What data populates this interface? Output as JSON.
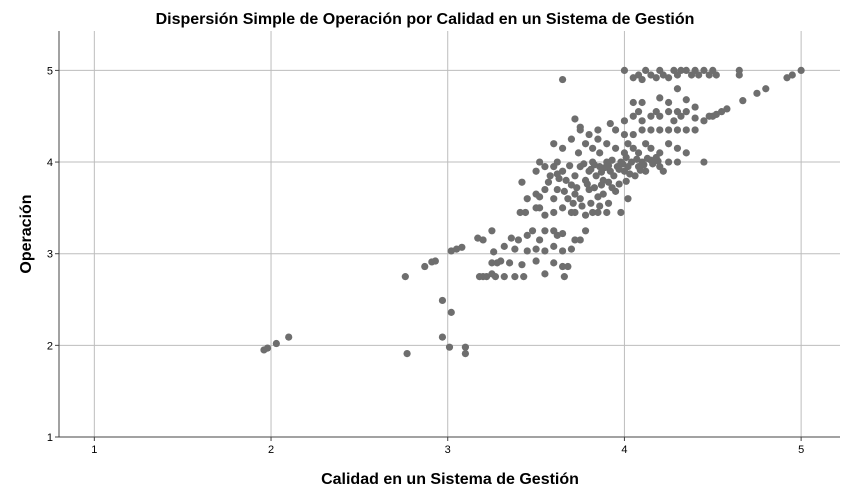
{
  "chart_data": {
    "type": "scatter",
    "title": "Dispersión Simple de Operación por Calidad en un Sistema de Gestión",
    "xlabel": "Calidad en un Sistema de Gestión",
    "ylabel": "Operación",
    "xlim": [
      0.8,
      5.22
    ],
    "ylim": [
      1,
      5.43
    ],
    "xticks": [
      "1",
      "2",
      "3",
      "4",
      "5"
    ],
    "yticks": [
      "1",
      "2",
      "3",
      "4",
      "5"
    ],
    "grid": true,
    "legend": "none",
    "marker_color": "#6e6e6e",
    "grid_color": "#bdbdbd",
    "points": [
      [
        1.96,
        1.95
      ],
      [
        1.98,
        1.97
      ],
      [
        2.03,
        2.02
      ],
      [
        2.1,
        2.09
      ],
      [
        2.76,
        2.75
      ],
      [
        2.77,
        1.91
      ],
      [
        2.87,
        2.86
      ],
      [
        2.91,
        2.91
      ],
      [
        2.93,
        2.92
      ],
      [
        2.97,
        2.49
      ],
      [
        2.97,
        2.09
      ],
      [
        3.01,
        1.98
      ],
      [
        3.02,
        2.36
      ],
      [
        3.1,
        1.91
      ],
      [
        3.1,
        1.98
      ],
      [
        3.02,
        3.03
      ],
      [
        3.05,
        3.05
      ],
      [
        3.08,
        3.07
      ],
      [
        3.17,
        3.17
      ],
      [
        3.2,
        3.15
      ],
      [
        3.18,
        2.75
      ],
      [
        3.2,
        2.75
      ],
      [
        3.22,
        2.75
      ],
      [
        3.25,
        2.78
      ],
      [
        3.27,
        2.75
      ],
      [
        3.32,
        2.75
      ],
      [
        3.38,
        2.75
      ],
      [
        3.43,
        2.75
      ],
      [
        3.55,
        2.78
      ],
      [
        3.66,
        2.75
      ],
      [
        3.25,
        2.9
      ],
      [
        3.28,
        2.9
      ],
      [
        3.3,
        2.92
      ],
      [
        3.35,
        2.9
      ],
      [
        3.42,
        2.88
      ],
      [
        3.5,
        2.92
      ],
      [
        3.6,
        2.9
      ],
      [
        3.65,
        2.86
      ],
      [
        3.68,
        2.86
      ],
      [
        3.26,
        3.02
      ],
      [
        3.32,
        3.08
      ],
      [
        3.38,
        3.05
      ],
      [
        3.45,
        3.03
      ],
      [
        3.5,
        3.05
      ],
      [
        3.55,
        3.03
      ],
      [
        3.6,
        3.08
      ],
      [
        3.65,
        3.03
      ],
      [
        3.7,
        3.05
      ],
      [
        3.25,
        3.25
      ],
      [
        3.36,
        3.17
      ],
      [
        3.4,
        3.15
      ],
      [
        3.45,
        3.2
      ],
      [
        3.48,
        3.25
      ],
      [
        3.52,
        3.15
      ],
      [
        3.55,
        3.25
      ],
      [
        3.6,
        3.25
      ],
      [
        3.62,
        3.2
      ],
      [
        3.65,
        3.22
      ],
      [
        3.72,
        3.15
      ],
      [
        3.75,
        3.15
      ],
      [
        3.78,
        3.25
      ],
      [
        3.41,
        3.45
      ],
      [
        3.44,
        3.45
      ],
      [
        3.5,
        3.5
      ],
      [
        3.52,
        3.5
      ],
      [
        3.55,
        3.42
      ],
      [
        3.6,
        3.45
      ],
      [
        3.65,
        3.5
      ],
      [
        3.7,
        3.45
      ],
      [
        3.72,
        3.45
      ],
      [
        3.78,
        3.42
      ],
      [
        3.82,
        3.45
      ],
      [
        3.85,
        3.45
      ],
      [
        3.9,
        3.45
      ],
      [
        3.98,
        3.45
      ],
      [
        3.45,
        3.6
      ],
      [
        3.5,
        3.65
      ],
      [
        3.55,
        3.7
      ],
      [
        3.6,
        3.6
      ],
      [
        3.62,
        3.7
      ],
      [
        3.68,
        3.6
      ],
      [
        3.72,
        3.65
      ],
      [
        3.75,
        3.6
      ],
      [
        3.8,
        3.7
      ],
      [
        3.85,
        3.62
      ],
      [
        3.88,
        3.65
      ],
      [
        3.95,
        3.68
      ],
      [
        4.02,
        3.6
      ],
      [
        3.42,
        3.78
      ],
      [
        3.5,
        3.9
      ],
      [
        3.52,
        4.0
      ],
      [
        3.55,
        3.95
      ],
      [
        3.6,
        3.95
      ],
      [
        3.62,
        4.0
      ],
      [
        3.58,
        3.85
      ],
      [
        3.65,
        3.9
      ],
      [
        3.67,
        3.8
      ],
      [
        3.7,
        3.75
      ],
      [
        3.72,
        3.85
      ],
      [
        3.75,
        3.95
      ],
      [
        3.78,
        3.8
      ],
      [
        3.8,
        3.9
      ],
      [
        3.82,
        4.0
      ],
      [
        3.84,
        3.85
      ],
      [
        3.86,
        3.95
      ],
      [
        3.88,
        3.8
      ],
      [
        3.9,
        4.0
      ],
      [
        3.92,
        3.9
      ],
      [
        3.94,
        3.85
      ],
      [
        3.96,
        3.95
      ],
      [
        3.98,
        4.0
      ],
      [
        4.0,
        3.9
      ],
      [
        4.02,
        3.95
      ],
      [
        4.04,
        4.0
      ],
      [
        4.06,
        3.85
      ],
      [
        4.08,
        3.95
      ],
      [
        4.1,
        4.0
      ],
      [
        4.12,
        3.9
      ],
      [
        4.15,
        4.02
      ],
      [
        4.18,
        4.05
      ],
      [
        4.2,
        3.95
      ],
      [
        4.22,
        3.9
      ],
      [
        4.25,
        4.0
      ],
      [
        4.3,
        4.0
      ],
      [
        4.45,
        4.0
      ],
      [
        3.74,
        4.1
      ],
      [
        3.78,
        4.2
      ],
      [
        3.82,
        4.15
      ],
      [
        3.86,
        4.1
      ],
      [
        3.9,
        4.2
      ],
      [
        3.95,
        4.15
      ],
      [
        4.0,
        4.1
      ],
      [
        4.02,
        4.2
      ],
      [
        4.05,
        4.15
      ],
      [
        4.08,
        4.1
      ],
      [
        4.12,
        4.2
      ],
      [
        4.15,
        4.15
      ],
      [
        4.2,
        4.1
      ],
      [
        4.25,
        4.2
      ],
      [
        4.3,
        4.15
      ],
      [
        4.35,
        4.1
      ],
      [
        3.6,
        4.2
      ],
      [
        3.65,
        4.15
      ],
      [
        3.7,
        4.25
      ],
      [
        3.75,
        4.35
      ],
      [
        3.8,
        4.3
      ],
      [
        3.85,
        4.25
      ],
      [
        3.95,
        4.35
      ],
      [
        4.0,
        4.3
      ],
      [
        4.05,
        4.3
      ],
      [
        3.65,
        4.9
      ],
      [
        3.72,
        4.47
      ],
      [
        3.75,
        4.38
      ],
      [
        3.85,
        4.35
      ],
      [
        3.92,
        4.42
      ],
      [
        4.0,
        4.45
      ],
      [
        4.05,
        4.5
      ],
      [
        4.08,
        4.55
      ],
      [
        4.1,
        4.45
      ],
      [
        4.15,
        4.5
      ],
      [
        4.18,
        4.55
      ],
      [
        4.2,
        4.5
      ],
      [
        4.25,
        4.55
      ],
      [
        4.28,
        4.45
      ],
      [
        4.3,
        4.55
      ],
      [
        4.32,
        4.5
      ],
      [
        4.35,
        4.55
      ],
      [
        4.4,
        4.48
      ],
      [
        4.1,
        4.35
      ],
      [
        4.15,
        4.35
      ],
      [
        4.2,
        4.35
      ],
      [
        4.25,
        4.35
      ],
      [
        4.3,
        4.35
      ],
      [
        4.35,
        4.35
      ],
      [
        4.4,
        4.35
      ],
      [
        4.05,
        4.65
      ],
      [
        4.1,
        4.65
      ],
      [
        4.2,
        4.7
      ],
      [
        4.25,
        4.65
      ],
      [
        4.3,
        4.8
      ],
      [
        4.35,
        4.68
      ],
      [
        4.4,
        4.6
      ],
      [
        4.1,
        4.9
      ],
      [
        4.15,
        4.95
      ],
      [
        4.18,
        4.92
      ],
      [
        4.2,
        5.0
      ],
      [
        4.22,
        4.95
      ],
      [
        4.25,
        4.92
      ],
      [
        4.28,
        5.0
      ],
      [
        4.3,
        4.95
      ],
      [
        4.32,
        5.0
      ],
      [
        4.35,
        5.0
      ],
      [
        4.38,
        4.95
      ],
      [
        4.4,
        5.0
      ],
      [
        4.42,
        4.95
      ],
      [
        4.45,
        5.0
      ],
      [
        4.48,
        4.95
      ],
      [
        4.5,
        5.0
      ],
      [
        4.52,
        4.95
      ],
      [
        4.0,
        5.0
      ],
      [
        4.05,
        4.92
      ],
      [
        4.08,
        4.95
      ],
      [
        4.12,
        5.0
      ],
      [
        4.45,
        4.45
      ],
      [
        4.48,
        4.5
      ],
      [
        4.5,
        4.5
      ],
      [
        4.52,
        4.52
      ],
      [
        4.55,
        4.55
      ],
      [
        4.58,
        4.58
      ],
      [
        4.65,
        4.95
      ],
      [
        4.65,
        5.0
      ],
      [
        4.67,
        4.67
      ],
      [
        4.75,
        4.75
      ],
      [
        4.8,
        4.8
      ],
      [
        4.92,
        4.92
      ],
      [
        4.95,
        4.95
      ],
      [
        5.0,
        5.0
      ],
      [
        3.62,
        3.87
      ],
      [
        3.69,
        3.96
      ],
      [
        3.77,
        3.98
      ],
      [
        3.81,
        3.92
      ],
      [
        3.83,
        3.97
      ],
      [
        3.87,
        3.89
      ],
      [
        3.89,
        3.94
      ],
      [
        3.91,
        3.96
      ],
      [
        3.93,
        4.02
      ],
      [
        3.97,
        3.92
      ],
      [
        3.99,
        3.98
      ],
      [
        4.01,
        4.05
      ],
      [
        4.03,
        3.87
      ],
      [
        4.07,
        4.03
      ],
      [
        4.09,
        3.91
      ],
      [
        4.11,
        3.97
      ],
      [
        4.13,
        4.04
      ],
      [
        4.16,
        3.98
      ],
      [
        4.19,
        4.01
      ],
      [
        3.73,
        3.72
      ],
      [
        3.79,
        3.76
      ],
      [
        3.83,
        3.72
      ],
      [
        3.87,
        3.75
      ],
      [
        3.91,
        3.78
      ],
      [
        3.93,
        3.72
      ],
      [
        3.97,
        3.76
      ],
      [
        4.01,
        3.79
      ],
      [
        3.52,
        3.62
      ],
      [
        3.57,
        3.78
      ],
      [
        3.63,
        3.82
      ],
      [
        3.66,
        3.68
      ],
      [
        3.71,
        3.55
      ],
      [
        3.76,
        3.52
      ],
      [
        3.81,
        3.55
      ],
      [
        3.86,
        3.52
      ],
      [
        3.91,
        3.55
      ]
    ]
  }
}
